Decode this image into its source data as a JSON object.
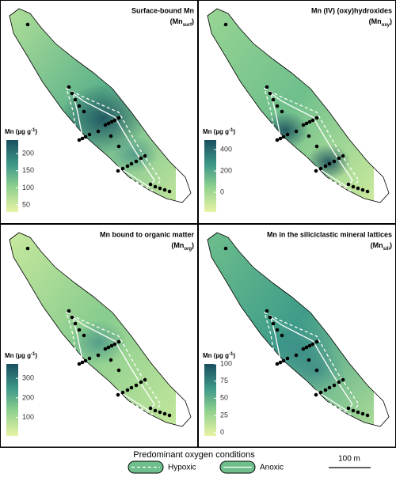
{
  "panels": [
    {
      "title": "Surface-bound Mn",
      "code": [
        "(Mn",
        "surf",
        ")"
      ],
      "colorbar": {
        "label": [
          "Mn (µg g",
          "-1",
          ")"
        ],
        "lim": [
          29,
          240
        ],
        "ticks": [
          50,
          100,
          150,
          200
        ]
      }
    },
    {
      "title": "Mn (IV) (oxy)hydroxides",
      "code": [
        "(Mn",
        "oxy",
        ")"
      ],
      "colorbar": {
        "label": [
          "Mn (µg g",
          "-1",
          ")"
        ],
        "lim": [
          -185,
          489
        ],
        "ticks": [
          0,
          200,
          400
        ]
      }
    },
    {
      "title": "Mn bound to organic matter",
      "code": [
        "(Mn",
        "org",
        ")"
      ],
      "colorbar": {
        "label": [
          "Mn (µg g",
          "-1",
          ")"
        ],
        "lim": [
          6,
          373
        ],
        "ticks": [
          100,
          200,
          300
        ]
      }
    },
    {
      "title": "Mn in the siliciclastic mineral lattices",
      "code": [
        "(Mn",
        "sili",
        ")"
      ],
      "colorbar": {
        "label": [
          "Mn (µg g",
          "-1",
          ")"
        ],
        "lim": [
          -5,
          100
        ],
        "ticks": [
          0,
          25,
          50,
          75,
          100
        ]
      }
    }
  ],
  "legend": {
    "title": "Predominant oxygen conditions",
    "hypoxic": "Hypoxic",
    "anoxic": "Anoxic",
    "scale": "100 m"
  }
}
